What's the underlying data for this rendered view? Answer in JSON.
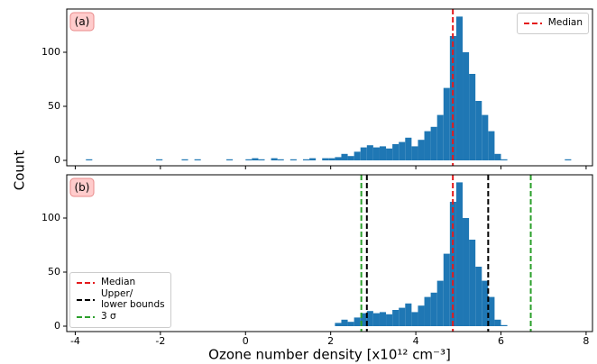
{
  "chart_data": [
    {
      "type": "histogram",
      "annotation": "(a)",
      "ylabel": "Count",
      "color": "#1f77b4",
      "bins": [
        -3.75,
        -3.6,
        -3.45,
        -3.3,
        -3.15,
        -3.0,
        -2.85,
        -2.7,
        -2.55,
        -2.4,
        -2.25,
        -2.1,
        -1.95,
        -1.8,
        -1.65,
        -1.5,
        -1.35,
        -1.2,
        -1.05,
        -0.9,
        -0.75,
        -0.6,
        -0.45,
        -0.3,
        -0.15,
        0,
        0.15,
        0.3,
        0.45,
        0.6,
        0.75,
        0.9,
        1.05,
        1.2,
        1.35,
        1.5,
        1.65,
        1.8,
        1.95,
        2.1,
        2.25,
        2.4,
        2.55,
        2.7,
        2.85,
        3.0,
        3.15,
        3.3,
        3.45,
        3.6,
        3.75,
        3.9,
        4.05,
        4.2,
        4.35,
        4.5,
        4.65,
        4.8,
        4.95,
        5.1,
        5.25,
        5.4,
        5.55,
        5.7,
        5.85,
        6.0,
        6.15,
        6.3,
        6.45,
        6.6,
        6.75,
        6.9,
        7.05,
        7.2,
        7.35,
        7.5,
        7.65
      ],
      "values": [
        1,
        0,
        0,
        0,
        0,
        0,
        0,
        0,
        0,
        0,
        0,
        1,
        0,
        0,
        0,
        1,
        0,
        1,
        0,
        0,
        0,
        0,
        1,
        0,
        0,
        1,
        2,
        1,
        0,
        2,
        1,
        0,
        1,
        0,
        1,
        2,
        0,
        2,
        2,
        3,
        6,
        4,
        8,
        12,
        14,
        12,
        13,
        11,
        15,
        17,
        21,
        13,
        19,
        27,
        31,
        42,
        67,
        115,
        133,
        100,
        80,
        55,
        42,
        27,
        6,
        1,
        0,
        0,
        0,
        0,
        0,
        0,
        0,
        0,
        0,
        1
      ],
      "xlim": [
        -4.2,
        8.15
      ],
      "xticks": [
        -4,
        -2,
        0,
        2,
        4,
        6,
        8
      ],
      "xticklabels": false,
      "ylim": [
        -5,
        140
      ],
      "yticks": [
        0,
        50,
        100
      ],
      "legend": "upper right",
      "vlines": [
        {
          "name": "Median",
          "color": "#e41a1c",
          "values": [
            4.87
          ]
        }
      ]
    },
    {
      "type": "histogram",
      "annotation": "(b)",
      "xlabel": "Ozone number density [x10¹² cm⁻³]",
      "color": "#1f77b4",
      "bins": [
        -3.75,
        -3.6,
        -3.45,
        -3.3,
        -3.15,
        -3.0,
        -2.85,
        -2.7,
        -2.55,
        -2.4,
        -2.25,
        -2.1,
        -1.95,
        -1.8,
        -1.65,
        -1.5,
        -1.35,
        -1.2,
        -1.05,
        -0.9,
        -0.75,
        -0.6,
        -0.45,
        -0.3,
        -0.15,
        0,
        0.15,
        0.3,
        0.45,
        0.6,
        0.75,
        0.9,
        1.05,
        1.2,
        1.35,
        1.5,
        1.65,
        1.8,
        1.95,
        2.1,
        2.25,
        2.4,
        2.55,
        2.7,
        2.85,
        3.0,
        3.15,
        3.3,
        3.45,
        3.6,
        3.75,
        3.9,
        4.05,
        4.2,
        4.35,
        4.5,
        4.65,
        4.8,
        4.95,
        5.1,
        5.25,
        5.4,
        5.55,
        5.7,
        5.85,
        6.0,
        6.15,
        6.3,
        6.45,
        6.6,
        6.75,
        6.9,
        7.05,
        7.2,
        7.35,
        7.5,
        7.65
      ],
      "values": [
        0,
        0,
        0,
        0,
        0,
        0,
        0,
        0,
        0,
        0,
        0,
        0,
        0,
        0,
        0,
        0,
        0,
        0,
        0,
        0,
        0,
        0,
        0,
        0,
        0,
        0,
        0,
        0,
        0,
        0,
        0,
        0,
        0,
        0,
        0,
        0,
        0,
        0,
        0,
        3,
        6,
        4,
        8,
        12,
        14,
        12,
        13,
        11,
        15,
        17,
        21,
        13,
        19,
        27,
        31,
        42,
        67,
        115,
        133,
        100,
        80,
        55,
        42,
        27,
        6,
        1,
        0,
        0,
        0,
        0,
        0,
        0,
        0,
        0,
        0,
        0
      ],
      "xlim": [
        -4.2,
        8.15
      ],
      "xticks": [
        -4,
        -2,
        0,
        2,
        4,
        6,
        8
      ],
      "xticklabels": true,
      "ylim": [
        -5,
        140
      ],
      "yticks": [
        0,
        50,
        100
      ],
      "legend": "lower left",
      "vlines": [
        {
          "name": "Median",
          "color": "#e41a1c",
          "values": [
            4.87
          ]
        },
        {
          "name": "Upper/\nlower bounds",
          "color": "#000000",
          "values": [
            2.85,
            5.7
          ]
        },
        {
          "name": "3 σ",
          "color": "#2ca02c",
          "values": [
            2.72,
            6.7
          ]
        }
      ]
    }
  ]
}
